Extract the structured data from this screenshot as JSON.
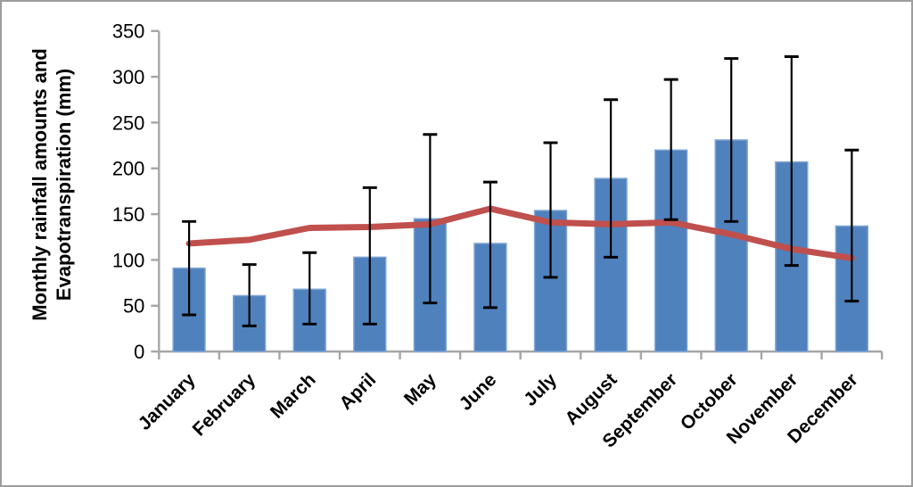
{
  "figure": {
    "background": "#ffffff",
    "border_color": "#9d9d9d"
  },
  "chart_data": {
    "type": "bar",
    "subtype": "bar-with-error-bars-plus-line-overlay",
    "title": "",
    "xlabel": "",
    "ylabel_line1": "Monthly rainfall amounts and",
    "ylabel_line2": "Evapotranspiration (mm)",
    "categories": [
      "January",
      "February",
      "March",
      "April",
      "May",
      "June",
      "July",
      "August",
      "September",
      "October",
      "November",
      "December"
    ],
    "series": [
      {
        "name": "Monthly rainfall amount",
        "type": "bar",
        "color": "#4f81bd",
        "border_color": "#7fa5d4",
        "values": [
          91,
          61,
          68,
          103,
          145,
          118,
          154,
          189,
          220,
          231,
          207,
          137
        ],
        "error_upper": [
          142,
          95,
          108,
          179,
          237,
          185,
          228,
          275,
          297,
          320,
          322,
          220
        ],
        "error_lower": [
          40,
          28,
          30,
          30,
          53,
          48,
          81,
          103,
          144,
          142,
          94,
          55
        ],
        "error_color": "#000000"
      },
      {
        "name": "Evapotranspiration",
        "type": "line",
        "color": "#c0504d",
        "values": [
          118,
          122,
          135,
          136,
          139,
          156,
          141,
          139,
          141,
          128,
          112,
          102
        ]
      }
    ],
    "yticks": [
      0,
      50,
      100,
      150,
      200,
      250,
      300,
      350
    ],
    "ylim": [
      0,
      350
    ],
    "grid": false,
    "legend_position": "none",
    "axis_color": "#a6a6a6",
    "tick_label_color": "#000000",
    "x_label_rotation_deg": -45
  }
}
